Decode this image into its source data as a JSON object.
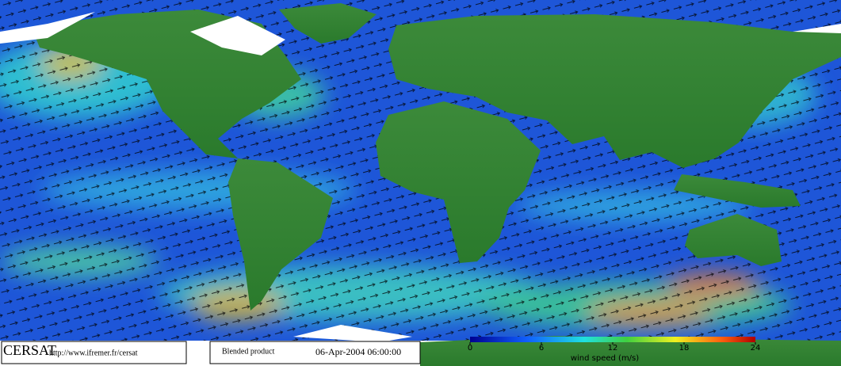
{
  "footer": {
    "logo": "CERSAT",
    "url": "http://www.ifremer.fr/cersat",
    "product": "Blended product",
    "datetime": "06-Apr-2004 06:00:00"
  },
  "colorbar": {
    "label": "wind speed (m/s)",
    "lim": [
      0,
      24
    ],
    "ticks": [
      0,
      6,
      12,
      18,
      24
    ]
  }
}
